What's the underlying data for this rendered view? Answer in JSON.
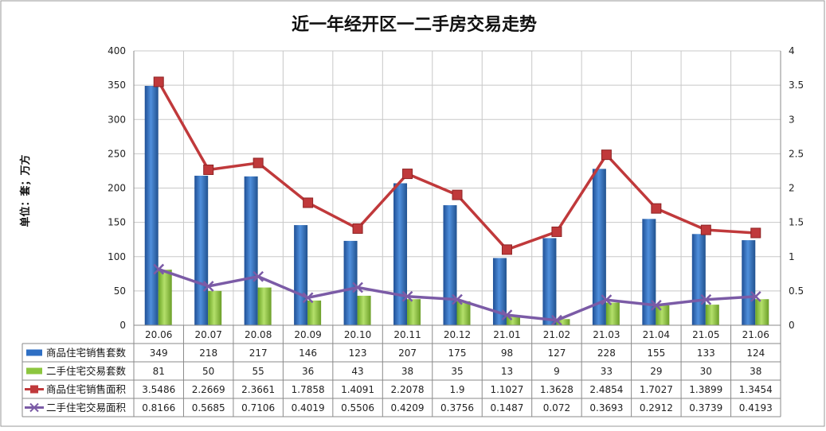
{
  "chart_data": {
    "type": "bar",
    "title": "近一年经开区一二手房交易走势",
    "ylabel": "单位：套；万方",
    "ylim": [
      0,
      400
    ],
    "y2lim": [
      0,
      4
    ],
    "yticks": [
      "0",
      "50",
      "100",
      "150",
      "200",
      "250",
      "300",
      "350",
      "400"
    ],
    "y2ticks": [
      "0",
      "0.5",
      "1",
      "1.5",
      "2",
      "2.5",
      "3",
      "3.5",
      "4"
    ],
    "grid": true,
    "categories": [
      "20.06",
      "20.07",
      "20.08",
      "20.09",
      "20.10",
      "20.11",
      "20.12",
      "21.01",
      "21.02",
      "21.03",
      "21.04",
      "21.05",
      "21.06"
    ],
    "series": [
      {
        "name": "商品住宅销售套数",
        "type": "bar",
        "axis": "left",
        "color": "#2E6FC4",
        "values": [
          349,
          218,
          217,
          146,
          123,
          207,
          175,
          98,
          127,
          228,
          155,
          133,
          124
        ],
        "labels": [
          "349",
          "218",
          "217",
          "146",
          "123",
          "207",
          "175",
          "98",
          "127",
          "228",
          "155",
          "133",
          "124"
        ]
      },
      {
        "name": "二手住宅交易套数",
        "type": "bar",
        "axis": "left",
        "color": "#8CC63F",
        "values": [
          81,
          50,
          55,
          36,
          43,
          38,
          35,
          13,
          9,
          33,
          29,
          30,
          38
        ],
        "labels": [
          "81",
          "50",
          "55",
          "36",
          "43",
          "38",
          "35",
          "13",
          "9",
          "33",
          "29",
          "30",
          "38"
        ]
      },
      {
        "name": "商品住宅销售面积",
        "type": "line",
        "axis": "right",
        "color": "#C0393B",
        "marker": "square",
        "values": [
          3.5486,
          2.2669,
          2.3661,
          1.7858,
          1.4091,
          2.2078,
          1.9,
          1.1027,
          1.3628,
          2.4854,
          1.7027,
          1.3899,
          1.3454
        ],
        "labels": [
          "3.5486",
          "2.2669",
          "2.3661",
          "1.7858",
          "1.4091",
          "2.2078",
          "1.9",
          "1.1027",
          "1.3628",
          "2.4854",
          "1.7027",
          "1.3899",
          "1.3454"
        ]
      },
      {
        "name": "二手住宅交易面积",
        "type": "line",
        "axis": "right",
        "color": "#7B5BA6",
        "marker": "x",
        "values": [
          0.8166,
          0.5685,
          0.7106,
          0.4019,
          0.5506,
          0.4209,
          0.3756,
          0.1487,
          0.072,
          0.3693,
          0.2912,
          0.3739,
          0.4193
        ],
        "labels": [
          "0.8166",
          "0.5685",
          "0.7106",
          "0.4019",
          "0.5506",
          "0.4209",
          "0.3756",
          "0.1487",
          "0.072",
          "0.3693",
          "0.2912",
          "0.3739",
          "0.4193"
        ]
      }
    ]
  }
}
